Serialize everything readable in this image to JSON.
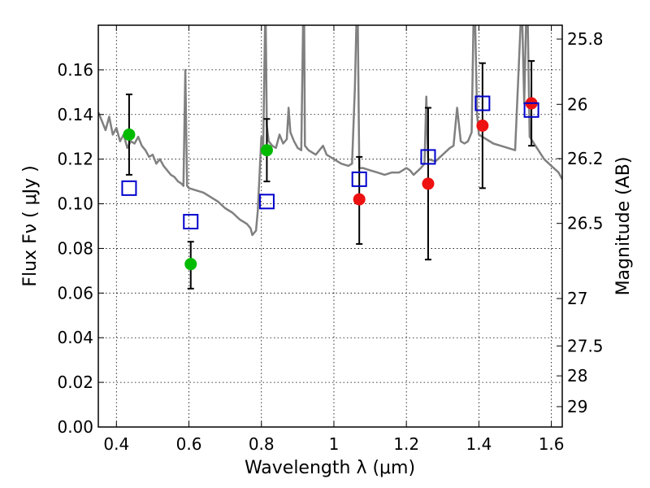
{
  "chart_data": {
    "type": "scatter",
    "xlabel": "Wavelength  λ (μm)",
    "ylabel": "Flux  Fν  ( μJy )",
    "y2label": "Magnitude (AB)",
    "xlim": [
      0.35,
      1.63
    ],
    "ylim": [
      0.0,
      0.18
    ],
    "grid": true,
    "x_ticks": [
      {
        "value": 0.4,
        "label": "0.4"
      },
      {
        "value": 0.6,
        "label": "0.6"
      },
      {
        "value": 0.8,
        "label": "0.8"
      },
      {
        "value": 1.0,
        "label": "1"
      },
      {
        "value": 1.2,
        "label": "1.2"
      },
      {
        "value": 1.4,
        "label": "1.4"
      },
      {
        "value": 1.6,
        "label": "1.6"
      }
    ],
    "y_ticks": [
      {
        "value": 0.0,
        "label": "0.00"
      },
      {
        "value": 0.02,
        "label": "0.02"
      },
      {
        "value": 0.04,
        "label": "0.04"
      },
      {
        "value": 0.06,
        "label": "0.06"
      },
      {
        "value": 0.08,
        "label": "0.08"
      },
      {
        "value": 0.1,
        "label": "0.10"
      },
      {
        "value": 0.12,
        "label": "0.12"
      },
      {
        "value": 0.14,
        "label": "0.14"
      },
      {
        "value": 0.16,
        "label": "0.16"
      }
    ],
    "y2_ticks": [
      {
        "value": 25.8,
        "label": "25.8"
      },
      {
        "value": 26.0,
        "label": "26"
      },
      {
        "value": 26.2,
        "label": "26.2"
      },
      {
        "value": 26.5,
        "label": "26.5"
      },
      {
        "value": 27.0,
        "label": "27"
      },
      {
        "value": 27.5,
        "label": "27.5"
      },
      {
        "value": 28.0,
        "label": "28"
      },
      {
        "value": 29.0,
        "label": "29"
      }
    ],
    "series": [
      {
        "name": "model spectrum",
        "type": "line",
        "color": "#808080",
        "points": [
          [
            0.35,
            0.141
          ],
          [
            0.36,
            0.137
          ],
          [
            0.37,
            0.133
          ],
          [
            0.38,
            0.139
          ],
          [
            0.39,
            0.131
          ],
          [
            0.4,
            0.134
          ],
          [
            0.41,
            0.128
          ],
          [
            0.42,
            0.131
          ],
          [
            0.43,
            0.125
          ],
          [
            0.44,
            0.128
          ],
          [
            0.45,
            0.127
          ],
          [
            0.46,
            0.13
          ],
          [
            0.47,
            0.126
          ],
          [
            0.48,
            0.124
          ],
          [
            0.49,
            0.121
          ],
          [
            0.5,
            0.122
          ],
          [
            0.51,
            0.118
          ],
          [
            0.52,
            0.12
          ],
          [
            0.53,
            0.117
          ],
          [
            0.54,
            0.115
          ],
          [
            0.55,
            0.113
          ],
          [
            0.56,
            0.112
          ],
          [
            0.57,
            0.11
          ],
          [
            0.58,
            0.109
          ],
          [
            0.585,
            0.108
          ],
          [
            0.59,
            0.16
          ],
          [
            0.595,
            0.108
          ],
          [
            0.6,
            0.107
          ],
          [
            0.62,
            0.106
          ],
          [
            0.64,
            0.105
          ],
          [
            0.66,
            0.103
          ],
          [
            0.68,
            0.101
          ],
          [
            0.7,
            0.098
          ],
          [
            0.72,
            0.096
          ],
          [
            0.74,
            0.093
          ],
          [
            0.76,
            0.091
          ],
          [
            0.77,
            0.089
          ],
          [
            0.775,
            0.086
          ],
          [
            0.785,
            0.088
          ],
          [
            0.79,
            0.097
          ],
          [
            0.8,
            0.13
          ],
          [
            0.805,
            0.126
          ],
          [
            0.81,
            0.18
          ],
          [
            0.812,
            0.18
          ],
          [
            0.815,
            0.135
          ],
          [
            0.82,
            0.128
          ],
          [
            0.83,
            0.126
          ],
          [
            0.84,
            0.125
          ],
          [
            0.85,
            0.131
          ],
          [
            0.86,
            0.127
          ],
          [
            0.87,
            0.129
          ],
          [
            0.875,
            0.143
          ],
          [
            0.88,
            0.132
          ],
          [
            0.89,
            0.128
          ],
          [
            0.9,
            0.125
          ],
          [
            0.91,
            0.124
          ],
          [
            0.915,
            0.18
          ],
          [
            0.918,
            0.18
          ],
          [
            0.92,
            0.126
          ],
          [
            0.93,
            0.124
          ],
          [
            0.95,
            0.122
          ],
          [
            0.97,
            0.126
          ],
          [
            0.98,
            0.122
          ],
          [
            1.0,
            0.12
          ],
          [
            1.02,
            0.118
          ],
          [
            1.04,
            0.117
          ],
          [
            1.05,
            0.118
          ],
          [
            1.058,
            0.152
          ],
          [
            1.062,
            0.18
          ],
          [
            1.066,
            0.18
          ],
          [
            1.07,
            0.116
          ],
          [
            1.08,
            0.116
          ],
          [
            1.1,
            0.115
          ],
          [
            1.12,
            0.114
          ],
          [
            1.14,
            0.113
          ],
          [
            1.16,
            0.114
          ],
          [
            1.18,
            0.114
          ],
          [
            1.2,
            0.116
          ],
          [
            1.21,
            0.115
          ],
          [
            1.22,
            0.113
          ],
          [
            1.24,
            0.116
          ],
          [
            1.25,
            0.118
          ],
          [
            1.255,
            0.148
          ],
          [
            1.26,
            0.12
          ],
          [
            1.28,
            0.119
          ],
          [
            1.3,
            0.122
          ],
          [
            1.32,
            0.125
          ],
          [
            1.33,
            0.126
          ],
          [
            1.34,
            0.143
          ],
          [
            1.35,
            0.128
          ],
          [
            1.36,
            0.127
          ],
          [
            1.37,
            0.128
          ],
          [
            1.38,
            0.132
          ],
          [
            1.385,
            0.18
          ],
          [
            1.39,
            0.18
          ],
          [
            1.395,
            0.14
          ],
          [
            1.4,
            0.131
          ],
          [
            1.42,
            0.129
          ],
          [
            1.44,
            0.127
          ],
          [
            1.46,
            0.126
          ],
          [
            1.48,
            0.125
          ],
          [
            1.5,
            0.124
          ],
          [
            1.515,
            0.18
          ],
          [
            1.52,
            0.18
          ],
          [
            1.525,
            0.145
          ],
          [
            1.53,
            0.18
          ],
          [
            1.535,
            0.18
          ],
          [
            1.54,
            0.13
          ],
          [
            1.56,
            0.125
          ],
          [
            1.58,
            0.12
          ],
          [
            1.6,
            0.117
          ],
          [
            1.62,
            0.114
          ],
          [
            1.63,
            0.111
          ]
        ]
      },
      {
        "name": "observed (green)",
        "type": "scatter",
        "color": "#00bb00",
        "points": [
          {
            "x": 0.435,
            "y": 0.131,
            "ylow": 0.113,
            "yhigh": 0.149
          },
          {
            "x": 0.605,
            "y": 0.073,
            "ylow": 0.062,
            "yhigh": 0.083
          },
          {
            "x": 0.815,
            "y": 0.124,
            "ylow": 0.11,
            "yhigh": 0.138
          }
        ]
      },
      {
        "name": "observed (red)",
        "type": "scatter",
        "color": "#ee1111",
        "points": [
          {
            "x": 1.07,
            "y": 0.102,
            "ylow": 0.082,
            "yhigh": 0.121
          },
          {
            "x": 1.26,
            "y": 0.109,
            "ylow": 0.075,
            "yhigh": 0.143
          },
          {
            "x": 1.41,
            "y": 0.135,
            "ylow": 0.107,
            "yhigh": 0.163
          },
          {
            "x": 1.545,
            "y": 0.145,
            "ylow": 0.126,
            "yhigh": 0.164
          }
        ]
      },
      {
        "name": "model photometry",
        "type": "scatter",
        "marker": "open-square",
        "color": "#0000cc",
        "points": [
          {
            "x": 0.435,
            "y": 0.107
          },
          {
            "x": 0.605,
            "y": 0.092
          },
          {
            "x": 0.815,
            "y": 0.101
          },
          {
            "x": 1.07,
            "y": 0.111
          },
          {
            "x": 1.26,
            "y": 0.121
          },
          {
            "x": 1.41,
            "y": 0.145
          },
          {
            "x": 1.545,
            "y": 0.142
          }
        ]
      }
    ]
  }
}
